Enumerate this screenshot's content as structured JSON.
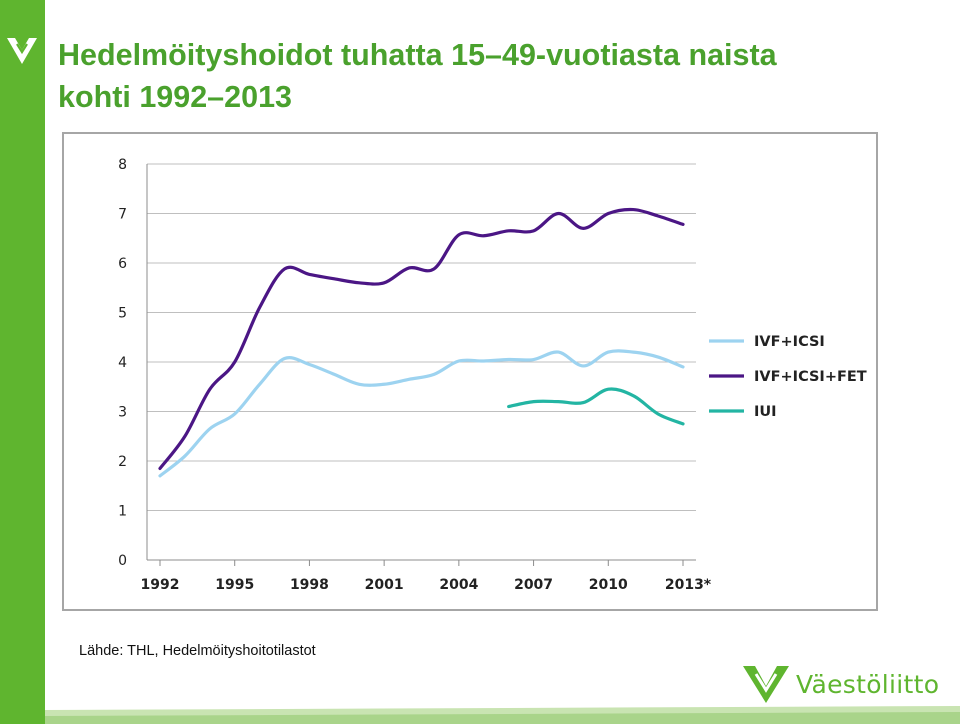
{
  "title_line1": "Hedelmöityshoidot tuhatta 15–49-vuotiasta naista",
  "title_line2": "kohti 1992–2013",
  "source": "Lähde: THL, Hedelmöityshoitotilastot",
  "brand": {
    "name": "Väestöliitto",
    "color": "#5fb52f",
    "icon": "vaestoliitto-heart-logo"
  },
  "chart_data": {
    "type": "line",
    "ylim": [
      0,
      8
    ],
    "yticks": [
      0,
      1,
      2,
      3,
      4,
      5,
      6,
      7,
      8
    ],
    "xlim": [
      1992,
      2013
    ],
    "xticks": [
      "1992",
      "1995",
      "1998",
      "2001",
      "2004",
      "2007",
      "2010",
      "2013*"
    ],
    "xtick_values": [
      1992,
      1995,
      1998,
      2001,
      2004,
      2007,
      2010,
      2013
    ],
    "grid": true,
    "legend_position": "right",
    "series": [
      {
        "name": "IVF+ICSI",
        "color": "#9dd3f0",
        "x": [
          1992,
          1993,
          1994,
          1995,
          1996,
          1997,
          1998,
          1999,
          2000,
          2001,
          2002,
          2003,
          2004,
          2005,
          2006,
          2007,
          2008,
          2009,
          2010,
          2011,
          2012,
          2013
        ],
        "values": [
          1.7,
          2.1,
          2.65,
          2.95,
          3.55,
          4.07,
          3.95,
          3.75,
          3.55,
          3.55,
          3.65,
          3.75,
          4.02,
          4.02,
          4.05,
          4.05,
          4.2,
          3.92,
          4.2,
          4.2,
          4.1,
          3.9
        ]
      },
      {
        "name": "IVF+ICSI+FET",
        "color": "#4b1685",
        "x": [
          1992,
          1993,
          1994,
          1995,
          1996,
          1997,
          1998,
          1999,
          2000,
          2001,
          2002,
          2003,
          2004,
          2005,
          2006,
          2007,
          2008,
          2009,
          2010,
          2011,
          2012,
          2013
        ],
        "values": [
          1.85,
          2.5,
          3.45,
          4.0,
          5.1,
          5.88,
          5.77,
          5.68,
          5.6,
          5.6,
          5.9,
          5.88,
          6.57,
          6.55,
          6.65,
          6.65,
          7.0,
          6.7,
          7.0,
          7.08,
          6.95,
          6.78
        ]
      },
      {
        "name": "IUI",
        "color": "#23b5a3",
        "x": [
          2006,
          2007,
          2008,
          2009,
          2010,
          2011,
          2012,
          2013
        ],
        "values": [
          3.1,
          3.2,
          3.2,
          3.18,
          3.45,
          3.32,
          2.95,
          2.75
        ]
      }
    ]
  }
}
